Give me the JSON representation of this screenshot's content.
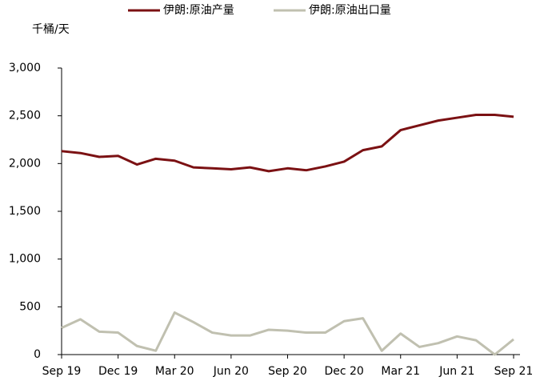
{
  "chart_data": {
    "type": "line",
    "y_label": "千桶/天",
    "categories": [
      "Sep 19",
      null,
      null,
      "Dec 19",
      null,
      null,
      "Mar 20",
      null,
      null,
      "Jun 20",
      null,
      null,
      "Sep 20",
      null,
      null,
      "Dec 20",
      null,
      null,
      "Mar 21",
      null,
      null,
      "Jun 21",
      null,
      null,
      "Sep 21"
    ],
    "series": [
      {
        "name": "伊朗:原油产量",
        "color": "#7b1113",
        "values": [
          2130,
          2110,
          2070,
          2080,
          1990,
          2050,
          2030,
          1960,
          1950,
          1940,
          1960,
          1920,
          1950,
          1930,
          1970,
          2020,
          2140,
          2180,
          2350,
          2400,
          2450,
          2480,
          2510,
          2510,
          2490
        ]
      },
      {
        "name": "伊朗:原油出口量",
        "color": "#c0c0b0",
        "values": [
          280,
          370,
          240,
          230,
          90,
          40,
          440,
          340,
          230,
          200,
          200,
          260,
          250,
          230,
          230,
          350,
          380,
          40,
          220,
          80,
          120,
          190,
          150,
          0,
          160
        ]
      }
    ],
    "ylim": [
      0,
      3000
    ],
    "yticks": [
      0,
      500,
      {
        "value": 1000,
        "label": "1,000"
      },
      {
        "value": 1500,
        "label": "1,500"
      },
      {
        "value": 2000,
        "label": "2,000"
      },
      {
        "value": 2500,
        "label": "2,500"
      },
      {
        "value": 3000,
        "label": "3,000"
      }
    ],
    "grid": false,
    "legend": "top"
  }
}
